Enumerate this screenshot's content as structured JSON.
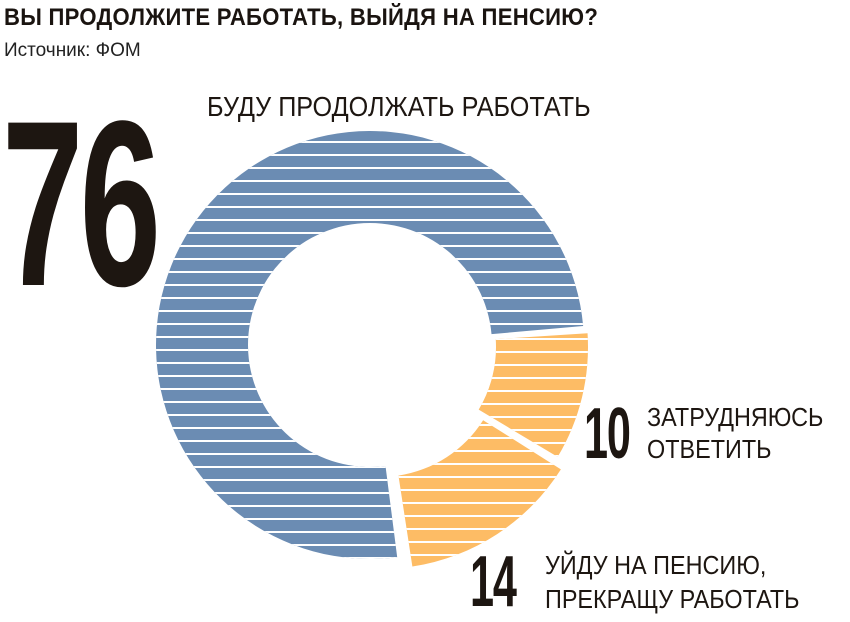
{
  "header": {
    "title": "ВЫ ПРОДОЛЖИТЕ РАБОТАТЬ, ВЫЙДЯ НА ПЕНСИЮ?",
    "source": "Источник: ФОМ"
  },
  "chart_data": {
    "type": "pie",
    "variant": "donut",
    "title": "ВЫ ПРОДОЛЖИТЕ РАБОТАТЬ, ВЫЙДЯ НА ПЕНСИЮ?",
    "slices": [
      {
        "value": 76,
        "value_label": "76",
        "label_line1": "БУДУ ПРОДОЛЖАТЬ РАБОТАТЬ",
        "label_line2": "",
        "color": "#6b8cb3"
      },
      {
        "value": 10,
        "value_label": "10",
        "label_line1": "ЗАТРУДНЯЮСЬ",
        "label_line2": "ОТВЕТИТЬ",
        "color": "#fdbc65"
      },
      {
        "value": 14,
        "value_label": "14",
        "label_line1": "УЙДУ НА ПЕНСИЮ,",
        "label_line2": "ПРЕКРАЩУ РАБОТАТЬ",
        "color": "#fdbc65"
      }
    ],
    "legend": "none",
    "stripe_color": "#ffffff"
  }
}
